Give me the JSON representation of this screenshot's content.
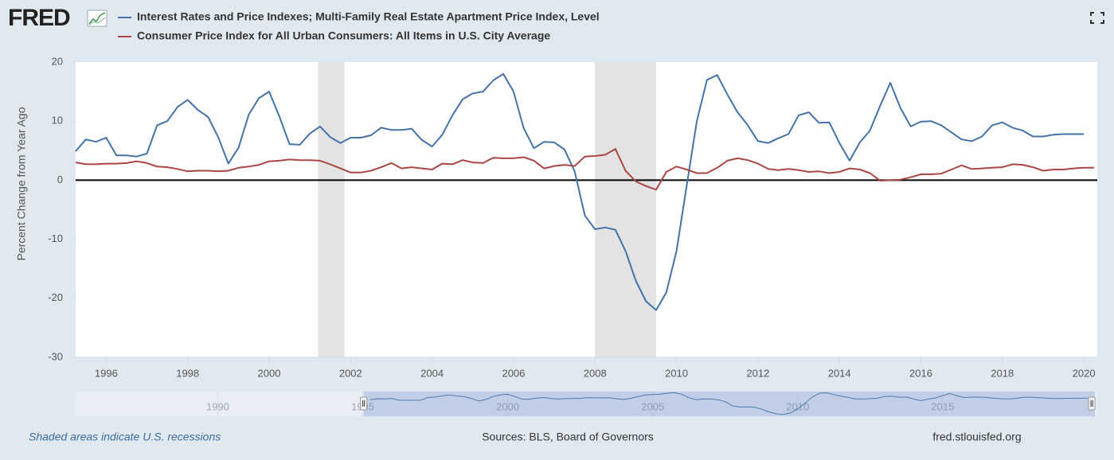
{
  "logo": "FRED",
  "footer": {
    "note": "Shaded areas indicate U.S. recessions",
    "sources": "Sources: BLS, Board of Governors",
    "site": "fred.stlouisfed.org"
  },
  "chart_data": {
    "type": "line",
    "ylabel": "Percent Change from Year Ago",
    "x": [
      1995.25,
      1995.5,
      1995.75,
      1996,
      1996.25,
      1996.5,
      1996.75,
      1997,
      1997.25,
      1997.5,
      1997.75,
      1998,
      1998.25,
      1998.5,
      1998.75,
      1999,
      1999.25,
      1999.5,
      1999.75,
      2000,
      2000.25,
      2000.5,
      2000.75,
      2001,
      2001.25,
      2001.5,
      2001.75,
      2002,
      2002.25,
      2002.5,
      2002.75,
      2003,
      2003.25,
      2003.5,
      2003.75,
      2004,
      2004.25,
      2004.5,
      2004.75,
      2005,
      2005.25,
      2005.5,
      2005.75,
      2006,
      2006.25,
      2006.5,
      2006.75,
      2007,
      2007.25,
      2007.5,
      2007.75,
      2008,
      2008.25,
      2008.5,
      2008.75,
      2009,
      2009.25,
      2009.5,
      2009.75,
      2010,
      2010.25,
      2010.5,
      2010.75,
      2011,
      2011.25,
      2011.5,
      2011.75,
      2012,
      2012.25,
      2012.5,
      2012.75,
      2013,
      2013.25,
      2013.5,
      2013.75,
      2014,
      2014.25,
      2014.5,
      2014.75,
      2015,
      2015.25,
      2015.5,
      2015.75,
      2016,
      2016.25,
      2016.5,
      2016.75,
      2017,
      2017.25,
      2017.5,
      2017.75,
      2018,
      2018.25,
      2018.5,
      2018.75,
      2019,
      2019.25,
      2019.5,
      2019.75,
      2020,
      2020.25
    ],
    "series": [
      {
        "name": "Interest Rates and Price Indexes; Multi-Family Real Estate Apartment Price Index, Level",
        "color": "#4572a7",
        "values": [
          4.9,
          6.9,
          6.5,
          7.2,
          4.2,
          4.2,
          4.0,
          4.5,
          9.3,
          10.0,
          12.4,
          13.6,
          11.9,
          10.7,
          7.3,
          2.8,
          5.5,
          11.1,
          13.9,
          15.0,
          10.8,
          6.1,
          6.0,
          7.9,
          9.1,
          7.3,
          6.3,
          7.2,
          7.2,
          7.6,
          8.9,
          8.5,
          8.5,
          8.7,
          6.8,
          5.7,
          7.7,
          11.0,
          13.7,
          14.7,
          15.0,
          16.9,
          18.0,
          15.0,
          8.8,
          5.4,
          6.5,
          6.4,
          5.2,
          1.5,
          -6.0,
          -8.3,
          -8.0,
          -8.4,
          -12.0,
          -17.0,
          -20.5,
          -22.0,
          -19.0,
          -12.0,
          -1.0,
          10.0,
          17.0,
          17.8,
          14.5,
          11.5,
          9.3,
          6.6,
          6.3,
          7.1,
          7.8,
          11.0,
          11.5,
          9.7,
          9.8,
          6.3,
          3.3,
          6.4,
          8.4,
          12.6,
          16.5,
          12.2,
          9.1,
          9.9,
          10.0,
          9.3,
          8.1,
          6.9,
          6.6,
          7.4,
          9.3,
          9.8,
          8.9,
          8.4,
          7.4,
          7.4,
          7.7,
          7.8,
          7.8,
          7.8,
          null
        ]
      },
      {
        "name": "Consumer Price Index for All Urban Consumers: All Items in U.S. City Average",
        "color": "#aa4643",
        "values": [
          3.0,
          2.7,
          2.7,
          2.8,
          2.8,
          2.9,
          3.2,
          2.9,
          2.3,
          2.2,
          1.9,
          1.5,
          1.6,
          1.6,
          1.5,
          1.6,
          2.1,
          2.3,
          2.6,
          3.2,
          3.3,
          3.5,
          3.4,
          3.4,
          3.3,
          2.7,
          2.0,
          1.3,
          1.3,
          1.6,
          2.2,
          2.9,
          2.0,
          2.2,
          2.0,
          1.8,
          2.8,
          2.7,
          3.4,
          3.0,
          2.9,
          3.8,
          3.7,
          3.7,
          3.9,
          3.3,
          2.0,
          2.4,
          2.6,
          2.4,
          4.0,
          4.1,
          4.3,
          5.3,
          1.6,
          -0.2,
          -1.0,
          -1.6,
          1.4,
          2.3,
          1.8,
          1.2,
          1.2,
          2.1,
          3.3,
          3.7,
          3.4,
          2.8,
          1.9,
          1.7,
          1.9,
          1.7,
          1.4,
          1.5,
          1.2,
          1.4,
          2.0,
          1.8,
          1.2,
          -0.1,
          0.0,
          0.1,
          0.5,
          1.0,
          1.0,
          1.1,
          1.8,
          2.5,
          1.9,
          2.0,
          2.1,
          2.2,
          2.7,
          2.6,
          2.2,
          1.6,
          1.8,
          1.8,
          2.0,
          2.1,
          2.1
        ]
      }
    ],
    "xlim": [
      1995.25,
      2020.33
    ],
    "xticks": [
      1996,
      1998,
      2000,
      2002,
      2004,
      2006,
      2008,
      2010,
      2012,
      2014,
      2016,
      2018,
      2020
    ],
    "ylim": [
      -30,
      20
    ],
    "yticks": [
      20,
      10,
      0,
      -10,
      -20,
      -30
    ],
    "zero_line": 0,
    "recessions": [
      [
        2001.2,
        2001.85
      ],
      [
        2008.0,
        2009.5
      ]
    ],
    "recession_color": "#e3e3e3",
    "navigator": {
      "xlim": [
        1985.1,
        2020.33
      ],
      "xticks": [
        1990,
        1995,
        2000,
        2005,
        2010,
        2015
      ],
      "ylim": [
        -25,
        20
      ],
      "window": [
        1995.25,
        2020.25
      ]
    }
  }
}
